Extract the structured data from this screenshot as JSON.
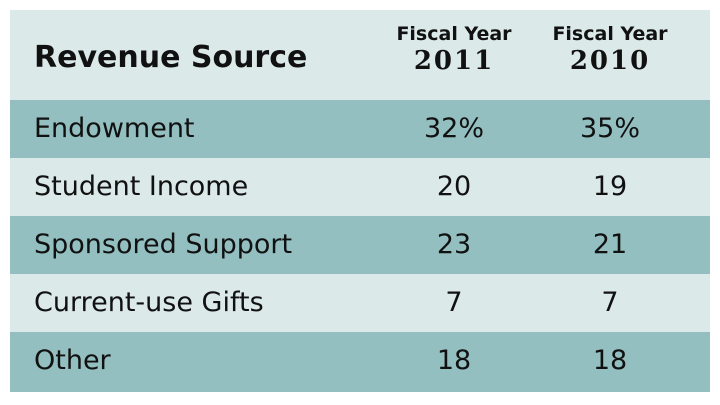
{
  "chart_data": {
    "type": "table",
    "columns": [
      "Revenue Source",
      "Fiscal Year 2011",
      "Fiscal Year 2010"
    ],
    "header": {
      "title": "Revenue Source",
      "year_label": "Fiscal Year",
      "years": [
        "2011",
        "2010"
      ]
    },
    "rows": [
      {
        "source": "Endowment",
        "fy2011": "32%",
        "fy2010": "35%"
      },
      {
        "source": "Student Income",
        "fy2011": "20",
        "fy2010": "19"
      },
      {
        "source": "Sponsored Support",
        "fy2011": "23",
        "fy2010": "21"
      },
      {
        "source": "Current-use Gifts",
        "fy2011": "7",
        "fy2010": "7"
      },
      {
        "source": "Other",
        "fy2011": "18",
        "fy2010": "18"
      }
    ]
  },
  "colors": {
    "header_band": "#dbe9e9",
    "dark_band": "#93bfc0",
    "light_band": "#dbe9e9"
  }
}
